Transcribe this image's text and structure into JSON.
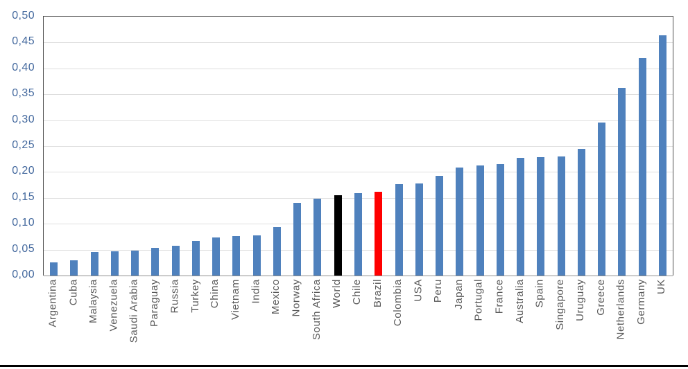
{
  "figure": {
    "background_color": "#ffffff",
    "bottom_rule_color": "#000000"
  },
  "chart_data": {
    "type": "bar",
    "title": "",
    "xlabel": "",
    "ylabel": "",
    "categories": [
      "Argentina",
      "Cuba",
      "Malaysia",
      "Venezuela",
      "Saudi Arabia",
      "Paraguay",
      "Russia",
      "Turkey",
      "China",
      "Vietnam",
      "India",
      "Mexico",
      "Norway",
      "South Africa",
      "World",
      "Chile",
      "Brazil",
      "Colombia",
      "USA",
      "Peru",
      "Japan",
      "Portugal",
      "France",
      "Australia",
      "Spain",
      "Singapore",
      "Uruguay",
      "Greece",
      "Netherlands",
      "Germany",
      "UK"
    ],
    "values": [
      0.025,
      0.03,
      0.046,
      0.047,
      0.048,
      0.053,
      0.057,
      0.067,
      0.074,
      0.076,
      0.078,
      0.094,
      0.141,
      0.148,
      0.155,
      0.159,
      0.162,
      0.177,
      0.178,
      0.192,
      0.208,
      0.213,
      0.215,
      0.227,
      0.228,
      0.23,
      0.245,
      0.295,
      0.362,
      0.42,
      0.464
    ],
    "bar_colors": [
      "#4f81bd",
      "#4f81bd",
      "#4f81bd",
      "#4f81bd",
      "#4f81bd",
      "#4f81bd",
      "#4f81bd",
      "#4f81bd",
      "#4f81bd",
      "#4f81bd",
      "#4f81bd",
      "#4f81bd",
      "#4f81bd",
      "#4f81bd",
      "#000000",
      "#4f81bd",
      "#ff0000",
      "#4f81bd",
      "#4f81bd",
      "#4f81bd",
      "#4f81bd",
      "#4f81bd",
      "#4f81bd",
      "#4f81bd",
      "#4f81bd",
      "#4f81bd",
      "#4f81bd",
      "#4f81bd",
      "#4f81bd",
      "#4f81bd",
      "#4f81bd"
    ],
    "default_bar_color": "#4f81bd",
    "highlighted_bars": {
      "World": "#000000",
      "Brazil": "#ff0000"
    },
    "y_ticks": [
      "0,00",
      "0,05",
      "0,10",
      "0,15",
      "0,20",
      "0,25",
      "0,30",
      "0,35",
      "0,40",
      "0,45",
      "0,50"
    ],
    "y_tick_values": [
      0.0,
      0.05,
      0.1,
      0.15,
      0.2,
      0.25,
      0.3,
      0.35,
      0.4,
      0.45,
      0.5
    ],
    "ylim": [
      0,
      0.5
    ],
    "decimal_separator": ",",
    "grid": true,
    "gridline_color": "#dedede",
    "legend_position": "none",
    "axis_colors": {
      "y_tick_text": "#44699e",
      "x_tick_text": "#595959",
      "plot_border": "#4d4d4d",
      "x_axis_line": "#8c8c8c"
    }
  }
}
